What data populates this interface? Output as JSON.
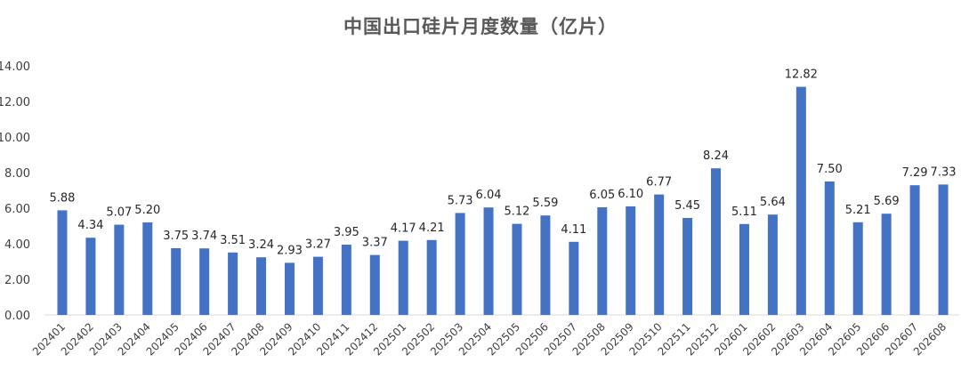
{
  "chart_data": {
    "type": "bar",
    "title": "中国出口硅片月度数量（亿片）",
    "xlabel": "",
    "ylabel": "",
    "ylim": [
      0,
      14
    ],
    "yticks": [
      "0.00",
      "2.00",
      "4.00",
      "6.00",
      "8.00",
      "10.00",
      "12.00",
      "14.00"
    ],
    "grid": false,
    "legend": "none",
    "bar_color": "#4472C4",
    "categories": [
      "202401",
      "202402",
      "202403",
      "202404",
      "202405",
      "202406",
      "202407",
      "202408",
      "202409",
      "202410",
      "202411",
      "202412",
      "202501",
      "202502",
      "202503",
      "202504",
      "202505",
      "202506",
      "202507",
      "202508",
      "202509",
      "202510",
      "202511",
      "202512",
      "202601",
      "202602",
      "202603",
      "202604",
      "202605",
      "202606",
      "202607",
      "202608"
    ],
    "values": [
      5.88,
      4.34,
      5.07,
      5.2,
      3.75,
      3.74,
      3.51,
      3.24,
      2.93,
      3.27,
      3.95,
      3.37,
      4.17,
      4.21,
      5.73,
      6.04,
      5.12,
      5.59,
      4.11,
      6.05,
      6.1,
      6.77,
      5.45,
      8.24,
      5.11,
      5.64,
      12.82,
      7.5,
      5.21,
      5.69,
      7.29,
      7.33
    ],
    "data_labels": [
      "5.88",
      "4.34",
      "5.07",
      "5.20",
      "3.75",
      "3.74",
      "3.51",
      "3.24",
      "2.93",
      "3.27",
      "3.95",
      "3.37",
      "4.17",
      "4.21",
      "5.73",
      "6.04",
      "5.12",
      "5.59",
      "4.11",
      "6.05",
      "6.10",
      "6.77",
      "5.45",
      "8.24",
      "5.11",
      "5.64",
      "12.82",
      "7.50",
      "5.21",
      "5.69",
      "7.29",
      "7.33"
    ]
  }
}
